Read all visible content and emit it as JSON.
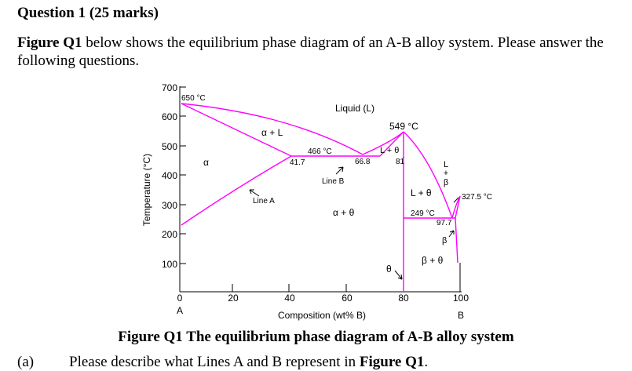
{
  "question": {
    "title": "Question 1 (25 marks)",
    "intro_fig": "Figure Q1",
    "intro_rest": " below shows the equilibrium phase diagram of an A-B alloy system. Please answer the following questions."
  },
  "figure": {
    "caption": "Figure Q1 The equilibrium phase diagram of A-B alloy system",
    "ylabel": "Temperature (°C)",
    "xlabel": "Composition (wt% B)",
    "y_ticks": [
      "700",
      "600",
      "500",
      "400",
      "300",
      "200",
      "100"
    ],
    "x_ticks": [
      "0",
      "20",
      "40",
      "60",
      "80",
      "100"
    ],
    "end_labels": {
      "left": "A",
      "right": "B"
    },
    "line_color": "#ff00ff",
    "phase_labels": {
      "liquid": "Liquid (L)",
      "alpha_l": "α + L",
      "alpha": "α",
      "l_theta_top": "L + θ",
      "l_theta": "L + θ",
      "alpha_theta": "α + θ",
      "beta_theta": "β + θ",
      "theta": "θ",
      "beta": "β",
      "l_beta_l": "L",
      "l_beta_plus": "+",
      "l_beta_b": "β"
    },
    "annotations": {
      "t650": "650 °C",
      "t549": "549 °C",
      "t466": "466 °C",
      "c417": "41.7",
      "c668": "66.8",
      "c81": "81",
      "line_a": "Line A",
      "line_b": "Line B",
      "t3275": "327.5 °C",
      "t249": "249 °C",
      "c977": "97.7"
    }
  },
  "part_a": {
    "letter": "(a)",
    "text": "Please describe what Lines A and B represent in ",
    "fig": "Figure Q1",
    "end": "."
  }
}
